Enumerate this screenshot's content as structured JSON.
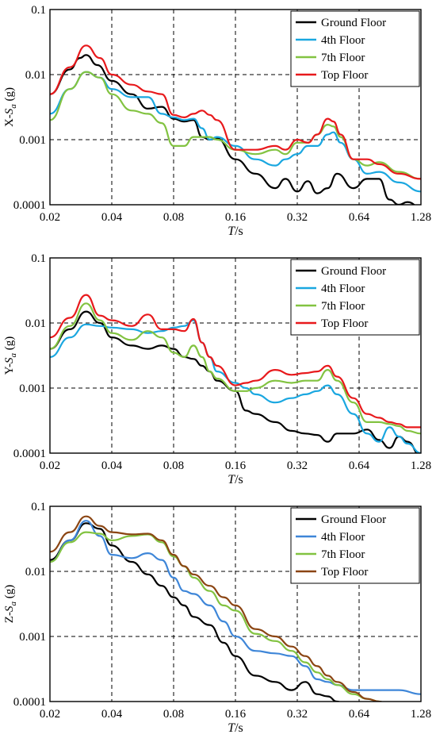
{
  "chart_data": [
    {
      "type": "line",
      "ylabel_prefix": "X-",
      "ylabel_var": "S",
      "ylabel_sub": "a",
      "ylabel_suffix": " (g)",
      "xlabel_var": "T",
      "xlabel_suffix": "/s",
      "x_scale": "log2",
      "y_scale": "log10",
      "xlim": [
        0.02,
        1.28
      ],
      "ylim": [
        0.0001,
        0.1
      ],
      "x_ticks": [
        "0.02",
        "0.04",
        "0.08",
        "0.16",
        "0.32",
        "0.64",
        "1.28"
      ],
      "y_ticks": [
        "0.0001",
        "0.001",
        "0.01",
        "0.1"
      ],
      "grid": true,
      "legend_position": "top-right",
      "series": [
        {
          "name": "Ground Floor",
          "color": "#000000",
          "x": [
            0.02,
            0.025,
            0.028,
            0.03,
            0.034,
            0.04,
            0.05,
            0.06,
            0.07,
            0.08,
            0.09,
            0.1,
            0.11,
            0.12,
            0.13,
            0.16,
            0.2,
            0.25,
            0.28,
            0.32,
            0.36,
            0.4,
            0.45,
            0.5,
            0.6,
            0.7,
            0.8,
            0.9,
            1.0,
            1.1,
            1.28
          ],
          "y": [
            0.005,
            0.012,
            0.018,
            0.02,
            0.014,
            0.008,
            0.005,
            0.003,
            0.0032,
            0.0021,
            0.0019,
            0.002,
            0.0011,
            0.001,
            0.00105,
            0.0005,
            0.0003,
            0.00018,
            0.00025,
            0.00016,
            0.00023,
            0.00015,
            0.00018,
            0.0003,
            0.00018,
            0.00025,
            0.00025,
            0.00012,
            0.0001,
            0.00011,
            9e-05
          ]
        },
        {
          "name": "4th Floor",
          "color": "#1aa7e0",
          "x": [
            0.02,
            0.025,
            0.03,
            0.035,
            0.04,
            0.05,
            0.06,
            0.07,
            0.08,
            0.09,
            0.1,
            0.11,
            0.12,
            0.13,
            0.16,
            0.2,
            0.25,
            0.28,
            0.32,
            0.36,
            0.4,
            0.45,
            0.48,
            0.52,
            0.6,
            0.7,
            0.8,
            1.0,
            1.28
          ],
          "y": [
            0.0025,
            0.006,
            0.011,
            0.009,
            0.006,
            0.0045,
            0.0045,
            0.0025,
            0.0022,
            0.002,
            0.0021,
            0.0015,
            0.001,
            0.0011,
            0.0008,
            0.0005,
            0.0004,
            0.0005,
            0.0006,
            0.0008,
            0.0008,
            0.0012,
            0.0013,
            0.0009,
            0.0005,
            0.0003,
            0.00032,
            0.00022,
            0.00016
          ]
        },
        {
          "name": "7th Floor",
          "color": "#82c341",
          "x": [
            0.02,
            0.025,
            0.03,
            0.035,
            0.04,
            0.05,
            0.06,
            0.07,
            0.08,
            0.09,
            0.1,
            0.11,
            0.12,
            0.13,
            0.16,
            0.2,
            0.25,
            0.28,
            0.32,
            0.36,
            0.4,
            0.45,
            0.48,
            0.52,
            0.6,
            0.7,
            0.8,
            1.0,
            1.28
          ],
          "y": [
            0.002,
            0.006,
            0.011,
            0.009,
            0.005,
            0.0028,
            0.0025,
            0.0018,
            0.0008,
            0.0008,
            0.0011,
            0.0011,
            0.0011,
            0.001,
            0.0007,
            0.0006,
            0.0007,
            0.0006,
            0.0009,
            0.0009,
            0.0012,
            0.0017,
            0.0016,
            0.0011,
            0.0005,
            0.0004,
            0.00045,
            0.00032,
            0.00025
          ]
        },
        {
          "name": "Top Floor",
          "color": "#e8191c",
          "x": [
            0.02,
            0.025,
            0.03,
            0.035,
            0.04,
            0.05,
            0.06,
            0.07,
            0.08,
            0.09,
            0.1,
            0.11,
            0.12,
            0.13,
            0.16,
            0.2,
            0.25,
            0.28,
            0.32,
            0.36,
            0.4,
            0.45,
            0.48,
            0.52,
            0.6,
            0.7,
            0.8,
            1.0,
            1.28
          ],
          "y": [
            0.005,
            0.013,
            0.028,
            0.018,
            0.01,
            0.007,
            0.0055,
            0.005,
            0.0024,
            0.0022,
            0.0025,
            0.0028,
            0.0024,
            0.002,
            0.0007,
            0.0007,
            0.0008,
            0.0007,
            0.001,
            0.0009,
            0.0012,
            0.0021,
            0.0019,
            0.0012,
            0.0005,
            0.0005,
            0.00042,
            0.0003,
            0.00025
          ]
        }
      ]
    },
    {
      "type": "line",
      "ylabel_prefix": "Y-",
      "ylabel_var": "S",
      "ylabel_sub": "a",
      "ylabel_suffix": " (g)",
      "xlabel_var": "T",
      "xlabel_suffix": "/s",
      "x_scale": "log2",
      "y_scale": "log10",
      "xlim": [
        0.02,
        1.28
      ],
      "ylim": [
        0.0001,
        0.1
      ],
      "x_ticks": [
        "0.02",
        "0.04",
        "0.08",
        "0.16",
        "0.32",
        "0.64",
        "1.28"
      ],
      "y_ticks": [
        "0.0001",
        "0.001",
        "0.01",
        "0.1"
      ],
      "grid": true,
      "legend_position": "top-right",
      "series": [
        {
          "name": "Ground Floor",
          "color": "#000000",
          "x": [
            0.02,
            0.025,
            0.03,
            0.035,
            0.04,
            0.05,
            0.06,
            0.07,
            0.08,
            0.09,
            0.1,
            0.11,
            0.12,
            0.13,
            0.16,
            0.18,
            0.2,
            0.25,
            0.3,
            0.35,
            0.4,
            0.45,
            0.5,
            0.6,
            0.7,
            0.8,
            0.9,
            1.0,
            1.1,
            1.28
          ],
          "y": [
            0.004,
            0.008,
            0.015,
            0.01,
            0.006,
            0.0045,
            0.004,
            0.0045,
            0.004,
            0.003,
            0.0028,
            0.0022,
            0.0018,
            0.0013,
            0.0009,
            0.00045,
            0.0004,
            0.0003,
            0.00022,
            0.0002,
            0.00019,
            0.00015,
            0.0002,
            0.0002,
            0.00023,
            0.00016,
            0.00012,
            0.00018,
            0.00015,
            9e-05
          ]
        },
        {
          "name": "4th Floor",
          "color": "#1aa7e0",
          "x": [
            0.02,
            0.025,
            0.03,
            0.035,
            0.04,
            0.05,
            0.06,
            0.07,
            0.08,
            0.09,
            0.1,
            0.11,
            0.12,
            0.13,
            0.16,
            0.18,
            0.2,
            0.25,
            0.3,
            0.35,
            0.4,
            0.45,
            0.5,
            0.6,
            0.7,
            0.8,
            0.9,
            1.0,
            1.1,
            1.28
          ],
          "y": [
            0.003,
            0.006,
            0.0095,
            0.009,
            0.0085,
            0.008,
            0.007,
            0.0075,
            0.0085,
            0.009,
            0.011,
            0.005,
            0.003,
            0.0018,
            0.0012,
            0.001,
            0.0008,
            0.0006,
            0.0007,
            0.0008,
            0.0009,
            0.0011,
            0.0008,
            0.0004,
            0.0002,
            0.00015,
            0.00025,
            0.00018,
            0.00014,
            0.0001
          ]
        },
        {
          "name": "7th Floor",
          "color": "#82c341",
          "x": [
            0.02,
            0.025,
            0.03,
            0.035,
            0.04,
            0.05,
            0.06,
            0.07,
            0.08,
            0.09,
            0.1,
            0.11,
            0.12,
            0.13,
            0.16,
            0.18,
            0.2,
            0.25,
            0.3,
            0.35,
            0.4,
            0.45,
            0.5,
            0.6,
            0.7,
            0.8,
            0.9,
            1.0,
            1.1,
            1.28
          ],
          "y": [
            0.004,
            0.009,
            0.02,
            0.011,
            0.007,
            0.0055,
            0.0075,
            0.006,
            0.0035,
            0.003,
            0.0045,
            0.003,
            0.0018,
            0.0014,
            0.0009,
            0.0009,
            0.001,
            0.0013,
            0.0012,
            0.0013,
            0.0013,
            0.0019,
            0.0013,
            0.0006,
            0.0003,
            0.0003,
            0.00028,
            0.00026,
            0.00022,
            0.0002
          ]
        },
        {
          "name": "Top Floor",
          "color": "#e8191c",
          "x": [
            0.02,
            0.025,
            0.03,
            0.035,
            0.04,
            0.05,
            0.06,
            0.07,
            0.08,
            0.09,
            0.1,
            0.11,
            0.12,
            0.13,
            0.16,
            0.18,
            0.2,
            0.25,
            0.3,
            0.35,
            0.4,
            0.45,
            0.5,
            0.6,
            0.7,
            0.8,
            0.9,
            1.0,
            1.1,
            1.28
          ],
          "y": [
            0.006,
            0.012,
            0.027,
            0.013,
            0.011,
            0.009,
            0.0135,
            0.008,
            0.008,
            0.0075,
            0.0115,
            0.005,
            0.003,
            0.0022,
            0.0011,
            0.0012,
            0.0013,
            0.0019,
            0.0016,
            0.0017,
            0.0018,
            0.0022,
            0.0015,
            0.0007,
            0.0004,
            0.00035,
            0.0003,
            0.00028,
            0.00025,
            0.00025
          ]
        }
      ]
    },
    {
      "type": "line",
      "ylabel_prefix": "Z-",
      "ylabel_var": "S",
      "ylabel_sub": "a",
      "ylabel_suffix": " (g)",
      "xlabel_var": "T",
      "xlabel_suffix": "/s",
      "x_scale": "log2",
      "y_scale": "log10",
      "xlim": [
        0.02,
        1.28
      ],
      "ylim": [
        0.0001,
        0.1
      ],
      "x_ticks": [
        "0.02",
        "0.04",
        "0.08",
        "0.16",
        "0.32",
        "0.64",
        "1.28"
      ],
      "y_ticks": [
        "0.0001",
        "0.001",
        "0.01",
        "0.1"
      ],
      "grid": true,
      "legend_position": "top-right",
      "series": [
        {
          "name": "Ground Floor",
          "color": "#000000",
          "x": [
            0.02,
            0.025,
            0.03,
            0.035,
            0.04,
            0.05,
            0.06,
            0.07,
            0.08,
            0.09,
            0.1,
            0.12,
            0.14,
            0.16,
            0.2,
            0.25,
            0.3,
            0.35,
            0.4,
            0.45,
            0.5,
            0.55,
            0.64
          ],
          "y": [
            0.015,
            0.03,
            0.055,
            0.045,
            0.025,
            0.014,
            0.009,
            0.006,
            0.004,
            0.003,
            0.002,
            0.0015,
            0.0008,
            0.0005,
            0.00025,
            0.0002,
            0.00015,
            0.0002,
            0.00013,
            0.00012,
            0.0001,
            9e-05,
            8e-05
          ]
        },
        {
          "name": "4th Floor",
          "color": "#3e86d8",
          "x": [
            0.02,
            0.025,
            0.03,
            0.035,
            0.04,
            0.05,
            0.06,
            0.07,
            0.08,
            0.09,
            0.1,
            0.12,
            0.14,
            0.16,
            0.2,
            0.25,
            0.3,
            0.35,
            0.4,
            0.45,
            0.5,
            0.6,
            0.7,
            0.8,
            1.0,
            1.28
          ],
          "y": [
            0.014,
            0.03,
            0.06,
            0.035,
            0.018,
            0.016,
            0.019,
            0.015,
            0.008,
            0.005,
            0.0045,
            0.003,
            0.0017,
            0.001,
            0.0006,
            0.00055,
            0.0005,
            0.00035,
            0.00022,
            0.0002,
            0.00018,
            0.00015,
            0.00015,
            0.00015,
            0.00015,
            0.00013
          ]
        },
        {
          "name": "7th Floor",
          "color": "#82c341",
          "x": [
            0.02,
            0.025,
            0.03,
            0.035,
            0.04,
            0.05,
            0.06,
            0.07,
            0.08,
            0.09,
            0.1,
            0.12,
            0.14,
            0.16,
            0.2,
            0.25,
            0.3,
            0.35,
            0.4,
            0.45,
            0.5,
            0.6,
            0.7,
            0.8,
            0.9
          ],
          "y": [
            0.014,
            0.028,
            0.04,
            0.038,
            0.03,
            0.035,
            0.037,
            0.028,
            0.017,
            0.012,
            0.008,
            0.005,
            0.003,
            0.0025,
            0.0011,
            0.00085,
            0.0006,
            0.0004,
            0.00028,
            0.00022,
            0.00018,
            0.00013,
            0.00011,
            0.0001,
            9e-05
          ]
        },
        {
          "name": "Top Floor",
          "color": "#8b4513",
          "x": [
            0.02,
            0.025,
            0.03,
            0.035,
            0.04,
            0.05,
            0.06,
            0.07,
            0.08,
            0.09,
            0.1,
            0.12,
            0.14,
            0.16,
            0.2,
            0.25,
            0.3,
            0.35,
            0.4,
            0.45,
            0.5,
            0.6,
            0.7,
            0.8,
            0.9
          ],
          "y": [
            0.02,
            0.04,
            0.07,
            0.05,
            0.04,
            0.037,
            0.038,
            0.03,
            0.018,
            0.012,
            0.009,
            0.006,
            0.004,
            0.003,
            0.0013,
            0.001,
            0.0007,
            0.0005,
            0.00035,
            0.00025,
            0.0002,
            0.00014,
            0.00011,
            0.0001,
            9e-05
          ]
        }
      ]
    }
  ]
}
